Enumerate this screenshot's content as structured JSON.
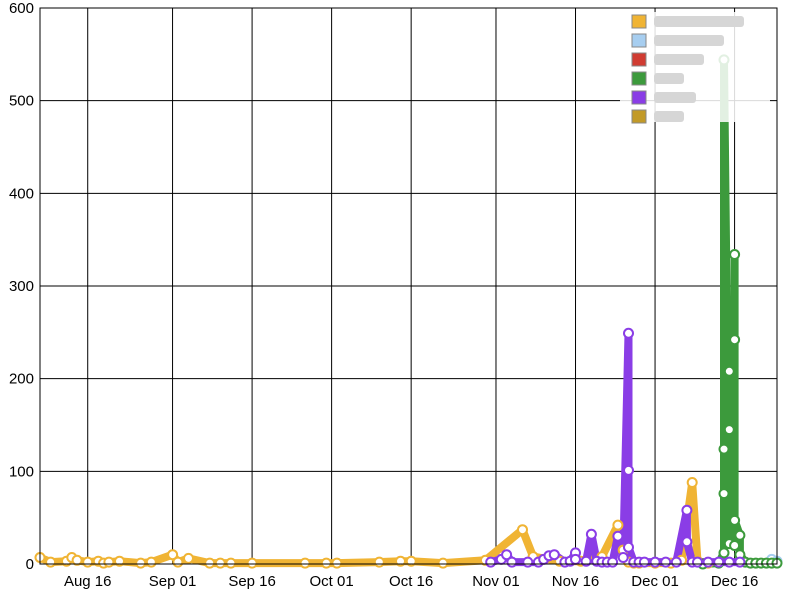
{
  "chart_data": {
    "type": "line",
    "title": "",
    "xlabel": "",
    "ylabel": "",
    "ylim": [
      0,
      600
    ],
    "xlim": [
      "2013-08-07",
      "2013-12-24"
    ],
    "grid": true,
    "legend_placement": "top-right",
    "x_ticks": [
      "Aug 16",
      "Sep 01",
      "Sep 16",
      "Oct 01",
      "Oct 16",
      "Nov 01",
      "Nov 16",
      "Dec 01",
      "Dec 16"
    ],
    "x_tick_dates": [
      "2013-08-16",
      "2013-09-01",
      "2013-09-16",
      "2013-10-01",
      "2013-10-16",
      "2013-11-01",
      "2013-11-16",
      "2013-12-01",
      "2013-12-16"
    ],
    "y_ticks": [
      "0",
      "100",
      "200",
      "300",
      "400",
      "500",
      "600"
    ],
    "y_tick_values": [
      0,
      100,
      200,
      300,
      400,
      500,
      600
    ],
    "series": [
      {
        "color": "#f0b434",
        "legend_text_obscured": true,
        "points": [
          [
            "2013-08-07",
            7
          ],
          [
            "2013-08-09",
            2
          ],
          [
            "2013-08-12",
            3
          ],
          [
            "2013-08-13",
            7
          ],
          [
            "2013-08-14",
            4
          ],
          [
            "2013-08-16",
            2
          ],
          [
            "2013-08-18",
            3
          ],
          [
            "2013-08-19",
            1
          ],
          [
            "2013-08-20",
            2
          ],
          [
            "2013-08-22",
            3
          ],
          [
            "2013-08-26",
            1
          ],
          [
            "2013-08-28",
            2
          ],
          [
            "2013-09-01",
            10
          ],
          [
            "2013-09-02",
            2
          ],
          [
            "2013-09-04",
            6
          ],
          [
            "2013-09-08",
            1
          ],
          [
            "2013-09-10",
            1
          ],
          [
            "2013-09-12",
            1
          ],
          [
            "2013-09-16",
            1
          ],
          [
            "2013-09-26",
            1
          ],
          [
            "2013-09-30",
            1
          ],
          [
            "2013-10-02",
            1
          ],
          [
            "2013-10-10",
            2
          ],
          [
            "2013-10-14",
            3
          ],
          [
            "2013-10-16",
            3
          ],
          [
            "2013-10-22",
            1
          ],
          [
            "2013-10-30",
            4
          ],
          [
            "2013-11-06",
            37
          ],
          [
            "2013-11-08",
            8
          ],
          [
            "2013-11-13",
            3
          ],
          [
            "2013-11-17",
            3
          ],
          [
            "2013-11-21",
            8
          ],
          [
            "2013-11-24",
            42
          ],
          [
            "2013-11-25",
            15
          ],
          [
            "2013-11-26",
            2
          ],
          [
            "2013-11-27",
            1
          ],
          [
            "2013-11-28",
            1
          ],
          [
            "2013-12-01",
            1
          ],
          [
            "2013-12-04",
            1
          ],
          [
            "2013-12-06",
            4
          ],
          [
            "2013-12-08",
            88
          ],
          [
            "2013-12-09",
            3
          ],
          [
            "2013-12-11",
            1
          ]
        ]
      },
      {
        "color": "#a7cef0",
        "legend_text_obscured": true,
        "points": [
          [
            "2013-12-23",
            5
          ],
          [
            "2013-12-24",
            3
          ]
        ]
      },
      {
        "color": "#d03c32",
        "legend_text_obscured": true,
        "points": []
      },
      {
        "color": "#3c9a3c",
        "legend_text_obscured": true,
        "points": [
          [
            "2013-12-10",
            0
          ],
          [
            "2013-12-13",
            1
          ],
          [
            "2013-12-14",
            12
          ],
          [
            "2013-12-14",
            124
          ],
          [
            "2013-12-14",
            76
          ],
          [
            "2013-12-14",
            544
          ],
          [
            "2013-12-15",
            22
          ],
          [
            "2013-12-15",
            145
          ],
          [
            "2013-12-15",
            208
          ],
          [
            "2013-12-16",
            20
          ],
          [
            "2013-12-16",
            334
          ],
          [
            "2013-12-16",
            242
          ],
          [
            "2013-12-16",
            47
          ],
          [
            "2013-12-17",
            31
          ],
          [
            "2013-12-17",
            10
          ],
          [
            "2013-12-18",
            2
          ],
          [
            "2013-12-19",
            1
          ],
          [
            "2013-12-20",
            1
          ],
          [
            "2013-12-21",
            1
          ],
          [
            "2013-12-22",
            1
          ],
          [
            "2013-12-23",
            1
          ],
          [
            "2013-12-24",
            1
          ]
        ]
      },
      {
        "color": "#8a3de6",
        "legend_text_obscured": true,
        "points": [
          [
            "2013-10-31",
            2
          ],
          [
            "2013-11-02",
            5
          ],
          [
            "2013-11-03",
            10
          ],
          [
            "2013-11-04",
            2
          ],
          [
            "2013-11-07",
            2
          ],
          [
            "2013-11-09",
            2
          ],
          [
            "2013-11-10",
            5
          ],
          [
            "2013-11-11",
            9
          ],
          [
            "2013-11-12",
            10
          ],
          [
            "2013-11-14",
            2
          ],
          [
            "2013-11-15",
            3
          ],
          [
            "2013-11-16",
            12
          ],
          [
            "2013-11-16",
            5
          ],
          [
            "2013-11-18",
            3
          ],
          [
            "2013-11-19",
            32
          ],
          [
            "2013-11-20",
            3
          ],
          [
            "2013-11-21",
            2
          ],
          [
            "2013-11-22",
            2
          ],
          [
            "2013-11-23",
            2
          ],
          [
            "2013-11-24",
            30
          ],
          [
            "2013-11-25",
            7
          ],
          [
            "2013-11-26",
            249
          ],
          [
            "2013-11-26",
            101
          ],
          [
            "2013-11-26",
            18
          ],
          [
            "2013-11-27",
            2
          ],
          [
            "2013-11-28",
            2
          ],
          [
            "2013-11-29",
            2
          ],
          [
            "2013-12-01",
            2
          ],
          [
            "2013-12-03",
            2
          ],
          [
            "2013-12-05",
            2
          ],
          [
            "2013-12-07",
            58
          ],
          [
            "2013-12-07",
            24
          ],
          [
            "2013-12-08",
            2
          ],
          [
            "2013-12-09",
            2
          ],
          [
            "2013-12-11",
            2
          ],
          [
            "2013-12-13",
            2
          ],
          [
            "2013-12-15",
            2
          ],
          [
            "2013-12-17",
            2
          ]
        ]
      },
      {
        "color": "#c29a28",
        "legend_text_obscured": true,
        "points": []
      }
    ]
  }
}
